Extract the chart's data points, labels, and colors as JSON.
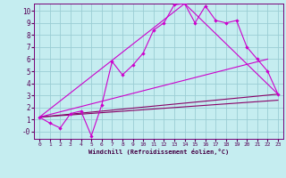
{
  "xlabel": "Windchill (Refroidissement éolien,°C)",
  "background_color": "#c5edf0",
  "grid_color": "#9bcdd4",
  "line_color_bright": "#cc00cc",
  "line_color_dark": "#880066",
  "xlim": [
    -0.5,
    23.5
  ],
  "ylim": [
    -0.6,
    10.6
  ],
  "xticks": [
    0,
    1,
    2,
    3,
    4,
    5,
    6,
    7,
    8,
    9,
    10,
    11,
    12,
    13,
    14,
    15,
    16,
    17,
    18,
    19,
    20,
    21,
    22,
    23
  ],
  "yticks": [
    0,
    1,
    2,
    3,
    4,
    5,
    6,
    7,
    8,
    9,
    10
  ],
  "series1_x": [
    0,
    1,
    2,
    3,
    4,
    5,
    6,
    7,
    8,
    9,
    10,
    11,
    12,
    13,
    14,
    15,
    16,
    17,
    18,
    19,
    20,
    21,
    22,
    23
  ],
  "series1_y": [
    1.2,
    0.7,
    0.3,
    1.5,
    1.7,
    -0.35,
    2.2,
    5.8,
    4.7,
    5.5,
    6.5,
    8.4,
    9.0,
    10.5,
    10.6,
    9.0,
    10.4,
    9.2,
    9.0,
    9.2,
    7.0,
    6.0,
    5.0,
    3.1
  ],
  "series2_x": [
    0,
    23
  ],
  "series2_y": [
    1.2,
    3.1
  ],
  "series3_x": [
    0,
    14,
    23
  ],
  "series3_y": [
    1.2,
    10.6,
    3.1
  ],
  "series4_x": [
    0,
    23
  ],
  "series4_y": [
    1.2,
    2.6
  ],
  "series5_x": [
    0,
    22
  ],
  "series5_y": [
    1.2,
    6.0
  ]
}
